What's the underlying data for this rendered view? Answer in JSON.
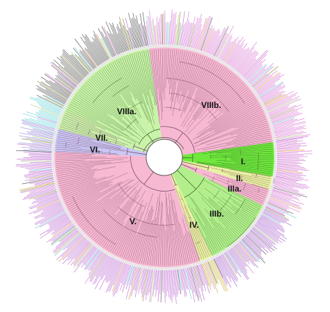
{
  "tree": {
    "clades": [
      {
        "id": "viiia",
        "label": "VIIIa.",
        "color": "#c9f3a8",
        "tip_color": "#444444"
      },
      {
        "id": "viiib",
        "label": "VIIIb.",
        "color": "#f7b8d2",
        "tip_color": "#d66fd0"
      },
      {
        "id": "vii",
        "label": "VII.",
        "color": "#c9f3a8",
        "tip_color": "#5fcfd6"
      },
      {
        "id": "vi",
        "label": "VI.",
        "color": "#c9c6f4",
        "tip_color": "#8f7fd0"
      },
      {
        "id": "v",
        "label": "V.",
        "color": "#f7b8d2",
        "tip_color": "#b860cf"
      },
      {
        "id": "iv",
        "label": "IV.",
        "color": "#e8f3a0",
        "tip_color": "#c8b030"
      },
      {
        "id": "iiib",
        "label": "IIIb.",
        "color": "#b2ef8c",
        "tip_color": "#a055c8"
      },
      {
        "id": "iiia",
        "label": "IIIa.",
        "color": "#f7b8d2",
        "tip_color": "#d66fd0"
      },
      {
        "id": "ii",
        "label": "II.",
        "color": "#e8f3a0",
        "tip_color": "#cc66cc"
      },
      {
        "id": "i",
        "label": "I.",
        "color": "#6ee83c",
        "tip_color": "#cc66cc"
      }
    ],
    "outer_tip_colors": [
      "#e08a3a",
      "#5fcfd6",
      "#444444",
      "#d66fd0",
      "#b860cf",
      "#8a8a2a",
      "#a6d66a"
    ]
  }
}
